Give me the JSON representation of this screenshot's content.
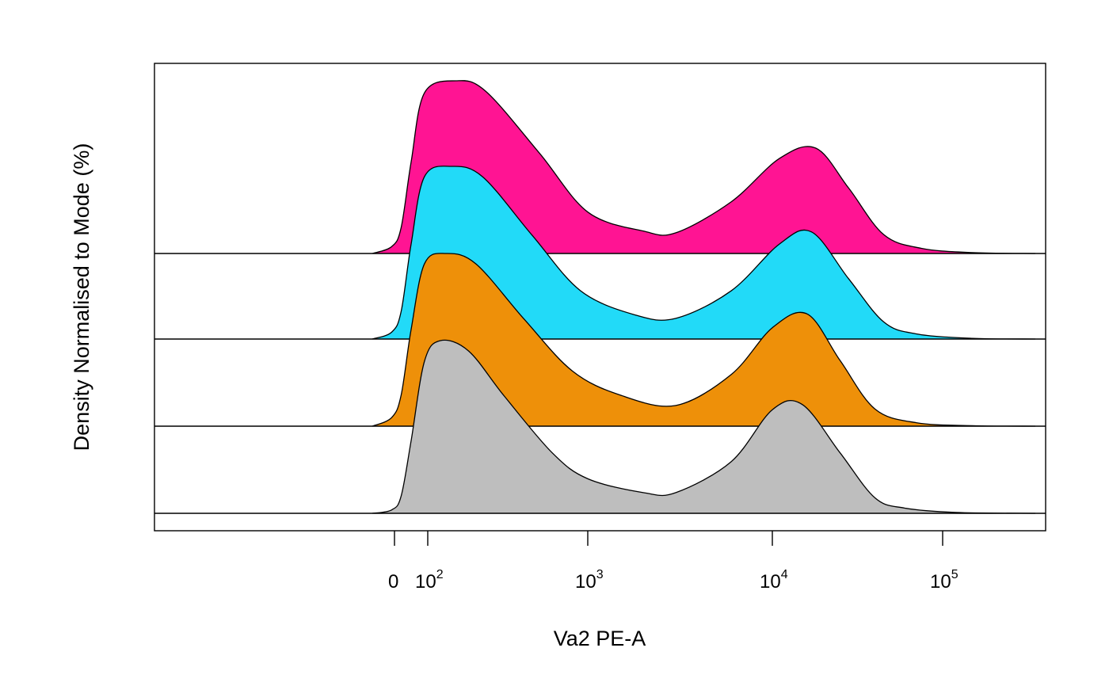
{
  "chart_data": {
    "type": "area",
    "xlabel": "Va2 PE-A",
    "ylabel": "Density Normalised to Mode (%)",
    "x_scale": "logicle",
    "xlim": [
      -60,
      350000
    ],
    "x_ticks": [
      {
        "value": 0,
        "base": "0",
        "exp": ""
      },
      {
        "value": 100,
        "base": "10",
        "exp": "2"
      },
      {
        "value": 1000,
        "base": "10",
        "exp": "3"
      },
      {
        "value": 10000,
        "base": "10",
        "exp": "4"
      },
      {
        "value": 100000,
        "base": "10",
        "exp": "5"
      }
    ],
    "y_ticks_shown": false,
    "stacked_offset": true,
    "border": true,
    "series": [
      {
        "color": "#BEBEBE",
        "points": [
          [
            -40,
            0.0
          ],
          [
            -5,
            0.02
          ],
          [
            20,
            0.1
          ],
          [
            50,
            0.42
          ],
          [
            90,
            0.88
          ],
          [
            120,
            1.0
          ],
          [
            180,
            0.94
          ],
          [
            300,
            0.68
          ],
          [
            600,
            0.35
          ],
          [
            1000,
            0.2
          ],
          [
            2000,
            0.12
          ],
          [
            3000,
            0.12
          ],
          [
            6000,
            0.3
          ],
          [
            10000,
            0.6
          ],
          [
            15000,
            0.63
          ],
          [
            25000,
            0.35
          ],
          [
            40000,
            0.09
          ],
          [
            60000,
            0.03
          ],
          [
            120000,
            0.005
          ],
          [
            350000,
            0.0
          ]
        ]
      },
      {
        "color": "#EE9009",
        "points": [
          [
            -40,
            0.0
          ],
          [
            -5,
            0.05
          ],
          [
            20,
            0.18
          ],
          [
            50,
            0.56
          ],
          [
            90,
            0.94
          ],
          [
            130,
            1.0
          ],
          [
            200,
            0.94
          ],
          [
            400,
            0.62
          ],
          [
            800,
            0.32
          ],
          [
            1500,
            0.18
          ],
          [
            3000,
            0.12
          ],
          [
            6000,
            0.3
          ],
          [
            10000,
            0.57
          ],
          [
            16000,
            0.65
          ],
          [
            25000,
            0.38
          ],
          [
            40000,
            0.1
          ],
          [
            70000,
            0.02
          ],
          [
            150000,
            0.003
          ],
          [
            350000,
            0.0
          ]
        ]
      },
      {
        "color": "#22DAF8",
        "points": [
          [
            -40,
            0.0
          ],
          [
            -5,
            0.04
          ],
          [
            20,
            0.16
          ],
          [
            50,
            0.55
          ],
          [
            90,
            0.94
          ],
          [
            140,
            1.0
          ],
          [
            220,
            0.94
          ],
          [
            450,
            0.6
          ],
          [
            900,
            0.28
          ],
          [
            1800,
            0.14
          ],
          [
            3000,
            0.12
          ],
          [
            6000,
            0.28
          ],
          [
            11000,
            0.55
          ],
          [
            17000,
            0.62
          ],
          [
            28000,
            0.35
          ],
          [
            45000,
            0.1
          ],
          [
            70000,
            0.03
          ],
          [
            150000,
            0.004
          ],
          [
            350000,
            0.0
          ]
        ]
      },
      {
        "color": "#FF1493",
        "points": [
          [
            -40,
            0.0
          ],
          [
            -5,
            0.04
          ],
          [
            20,
            0.15
          ],
          [
            50,
            0.53
          ],
          [
            90,
            0.93
          ],
          [
            150,
            1.0
          ],
          [
            230,
            0.94
          ],
          [
            500,
            0.58
          ],
          [
            1000,
            0.24
          ],
          [
            2000,
            0.13
          ],
          [
            3000,
            0.12
          ],
          [
            6000,
            0.3
          ],
          [
            11000,
            0.55
          ],
          [
            18000,
            0.61
          ],
          [
            28000,
            0.38
          ],
          [
            45000,
            0.11
          ],
          [
            75000,
            0.03
          ],
          [
            150000,
            0.005
          ],
          [
            350000,
            0.0
          ]
        ]
      }
    ]
  }
}
